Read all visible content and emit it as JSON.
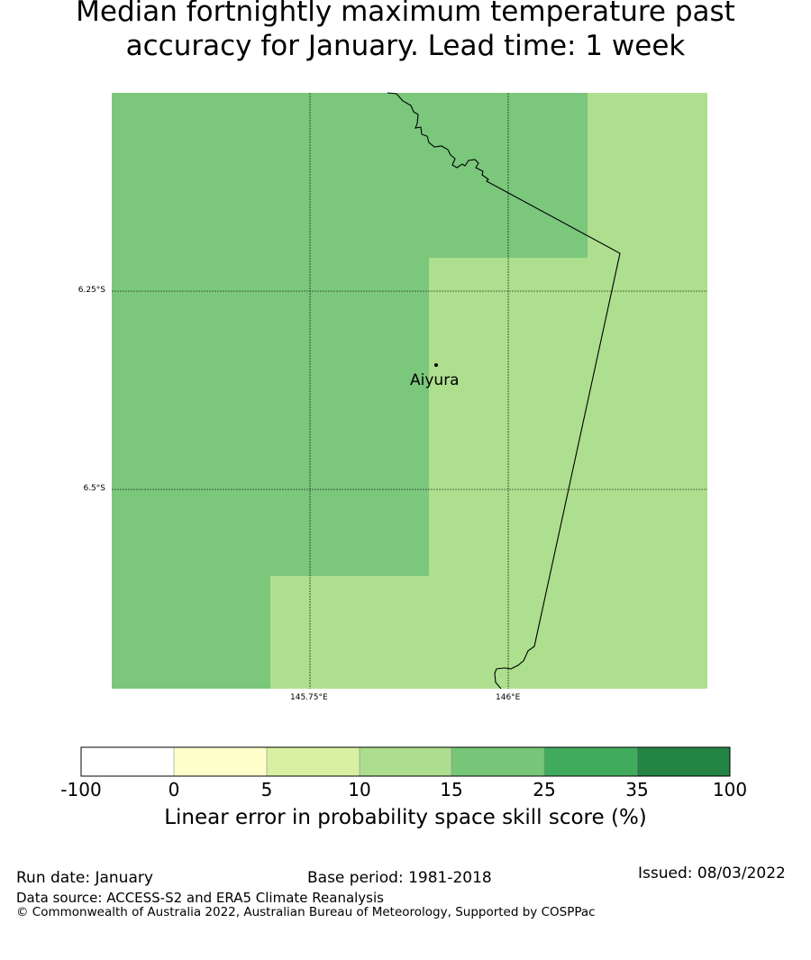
{
  "title": "Median fortnightly maximum temperature past\naccuracy for January. Lead time: 1 week",
  "map": {
    "place_label": "Aiyura",
    "lat_labels": [
      "6.25°S",
      "6.5°S"
    ],
    "lon_labels": [
      "145.75°E",
      "146°E"
    ],
    "region_colors": {
      "dark_green": "#7bc77c",
      "light_green": "#addf8e"
    }
  },
  "colorbar": {
    "ticks": [
      "-100",
      "0",
      "5",
      "10",
      "15",
      "25",
      "35",
      "100"
    ],
    "colors": [
      "#ffffff",
      "#ffffcc",
      "#d9f0a3",
      "#addd8e",
      "#78c679",
      "#41ab5d",
      "#238443"
    ],
    "title": "Linear error in probability space skill score (%)"
  },
  "footer": {
    "run_date": "Run date: January",
    "base_period": "Base period: 1981-2018",
    "issued": "Issued: 08/03/2022",
    "data_source": "Data source: ACCESS-S2 and ERA5 Climate Reanalysis",
    "copyright": "© Commonwealth of Australia 2022, Australian Bureau of Meteorology, Supported by COSPPac"
  }
}
